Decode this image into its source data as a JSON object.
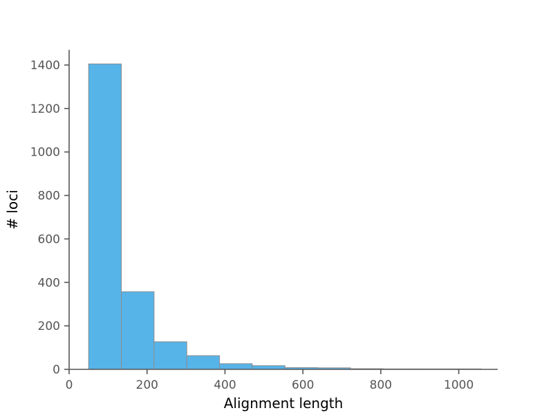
{
  "chart_data": {
    "type": "bar",
    "title": "",
    "xlabel": "Alignment length",
    "ylabel": "# loci",
    "xlim": [
      0,
      1100
    ],
    "ylim": [
      0,
      1470
    ],
    "xticks": [
      0,
      200,
      400,
      600,
      800,
      1000
    ],
    "yticks": [
      0,
      200,
      400,
      600,
      800,
      1000,
      1200,
      1400
    ],
    "bin_edges": [
      50,
      134,
      218,
      302,
      386,
      470,
      554,
      638,
      722,
      806,
      890,
      974,
      1058
    ],
    "values": [
      1405,
      357,
      127,
      63,
      26,
      17,
      8,
      7,
      3,
      2,
      2,
      2
    ],
    "colors": {
      "bar_fill": "#56B4E9",
      "bar_edge": "#8c8c8c",
      "axis": "#555555"
    },
    "grid": false
  }
}
